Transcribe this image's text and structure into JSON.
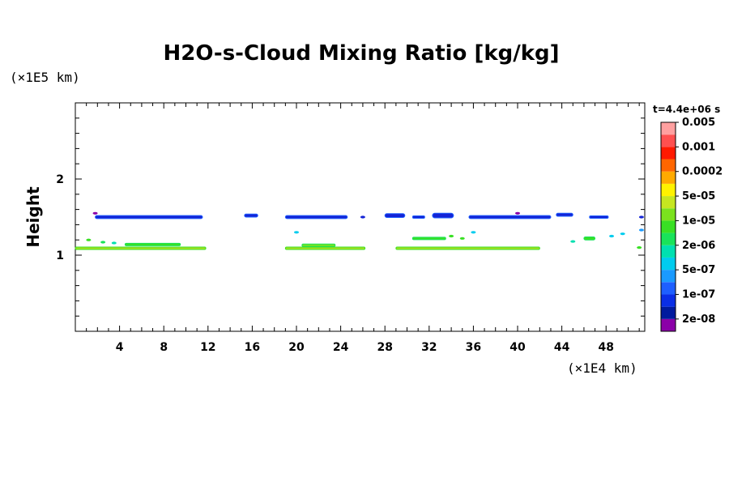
{
  "chart_data": {
    "type": "heatmap",
    "title": "H2O-s-Cloud Mixing Ratio [kg/kg]",
    "ylabel": "Height",
    "xunit": "(×1E4 km)",
    "yunit": "(×1E5 km)",
    "time_label": "t=4.4e+06 s",
    "xlim": [
      0,
      51.5
    ],
    "ylim": [
      0,
      3.0
    ],
    "xticks": [
      4,
      8,
      12,
      16,
      20,
      24,
      28,
      32,
      36,
      40,
      44,
      48
    ],
    "yticks": [
      1,
      2
    ],
    "colorbar": {
      "colors": [
        "#8b00a8",
        "#001a9e",
        "#0a2ee6",
        "#1e5fff",
        "#1a9aff",
        "#00ccee",
        "#00e0b0",
        "#19e35a",
        "#39e024",
        "#7be21e",
        "#c6e620",
        "#fff200",
        "#ffaa00",
        "#ff6600",
        "#ff1a00",
        "#ff5050",
        "#ffa0a0"
      ],
      "labels": [
        "2e-08",
        "1e-07",
        "5e-07",
        "2e-06",
        "1e-05",
        "5e-05",
        "0.0002",
        "0.001",
        "0.005"
      ]
    },
    "features": [
      {
        "x0": 1.8,
        "x1": 11.5,
        "y": 1.5,
        "h": 0.04,
        "fill": "#1424d6",
        "stroke": "#1e5fff"
      },
      {
        "x0": 15.3,
        "x1": 16.5,
        "y": 1.52,
        "h": 0.04,
        "fill": "#1424d6",
        "stroke": "#1e5fff"
      },
      {
        "x0": 19.0,
        "x1": 24.6,
        "y": 1.5,
        "h": 0.04,
        "fill": "#1424d6",
        "stroke": "#1e5fff"
      },
      {
        "x0": 28.0,
        "x1": 29.8,
        "y": 1.52,
        "h": 0.05,
        "fill": "#1424d6",
        "stroke": "#1e5fff"
      },
      {
        "x0": 30.5,
        "x1": 31.6,
        "y": 1.5,
        "h": 0.03,
        "fill": "#1424d6",
        "stroke": "#1e5fff"
      },
      {
        "x0": 32.3,
        "x1": 34.2,
        "y": 1.52,
        "h": 0.06,
        "fill": "#1424d6",
        "stroke": "#1e5fff"
      },
      {
        "x0": 35.6,
        "x1": 43.0,
        "y": 1.5,
        "h": 0.04,
        "fill": "#1424d6",
        "stroke": "#1e5fff"
      },
      {
        "x0": 43.5,
        "x1": 45.0,
        "y": 1.53,
        "h": 0.04,
        "fill": "#1424d6",
        "stroke": "#1e5fff"
      },
      {
        "x0": 46.5,
        "x1": 48.2,
        "y": 1.5,
        "h": 0.03,
        "fill": "#1424d6",
        "stroke": "#1e5fff"
      },
      {
        "x0": 0.0,
        "x1": 11.8,
        "y": 1.09,
        "h": 0.025,
        "fill": "#a8e020",
        "stroke": "#39e024"
      },
      {
        "x0": 19.0,
        "x1": 26.2,
        "y": 1.09,
        "h": 0.025,
        "fill": "#a8e020",
        "stroke": "#39e024"
      },
      {
        "x0": 29.0,
        "x1": 42.0,
        "y": 1.09,
        "h": 0.025,
        "fill": "#a8e020",
        "stroke": "#39e024"
      },
      {
        "x0": 4.5,
        "x1": 9.5,
        "y": 1.14,
        "h": 0.025,
        "fill": "#39e024",
        "stroke": "#19e35a"
      },
      {
        "x0": 20.5,
        "x1": 23.5,
        "y": 1.13,
        "h": 0.025,
        "fill": "#7be21e",
        "stroke": "#19e35a"
      },
      {
        "x0": 30.5,
        "x1": 33.5,
        "y": 1.22,
        "h": 0.025,
        "fill": "#39e024",
        "stroke": "#19e35a"
      },
      {
        "x0": 46.0,
        "x1": 47.0,
        "y": 1.22,
        "h": 0.04,
        "fill": "#39e024",
        "stroke": "#19e35a"
      }
    ],
    "specks": [
      {
        "x": 1.2,
        "y": 1.2,
        "color": "#39e024"
      },
      {
        "x": 2.5,
        "y": 1.17,
        "color": "#19e35a"
      },
      {
        "x": 3.5,
        "y": 1.16,
        "color": "#00e0b0"
      },
      {
        "x": 20.0,
        "y": 1.3,
        "color": "#00ccee"
      },
      {
        "x": 34.0,
        "y": 1.25,
        "color": "#39e024"
      },
      {
        "x": 35.0,
        "y": 1.22,
        "color": "#39e024"
      },
      {
        "x": 36.0,
        "y": 1.3,
        "color": "#00ccee"
      },
      {
        "x": 45.0,
        "y": 1.18,
        "color": "#00e0b0"
      },
      {
        "x": 48.5,
        "y": 1.25,
        "color": "#00ccee"
      },
      {
        "x": 49.5,
        "y": 1.28,
        "color": "#00ccee"
      },
      {
        "x": 51.0,
        "y": 1.1,
        "color": "#39e024"
      },
      {
        "x": 51.2,
        "y": 1.33,
        "color": "#1a9aff"
      },
      {
        "x": 1.8,
        "y": 1.55,
        "color": "#8b00a8"
      },
      {
        "x": 26.0,
        "y": 1.5,
        "color": "#1424d6"
      },
      {
        "x": 40.0,
        "y": 1.55,
        "color": "#8b00a8"
      },
      {
        "x": 51.2,
        "y": 1.5,
        "color": "#1424d6"
      }
    ]
  }
}
